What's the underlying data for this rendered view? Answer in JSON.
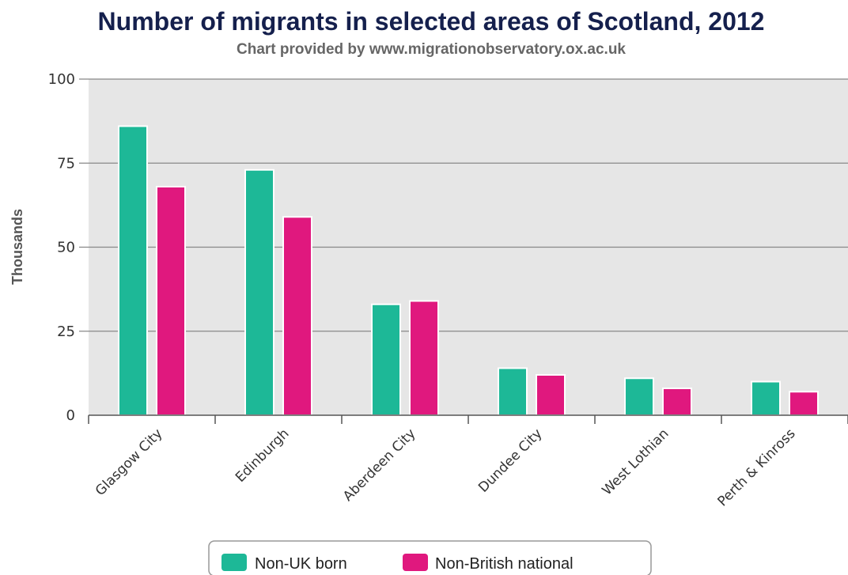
{
  "chart_data": {
    "type": "bar",
    "title": "Number of migrants in selected areas of Scotland, 2012",
    "subtitle": "Chart provided by www.migrationobservatory.ox.ac.uk",
    "ylabel": "Thousands",
    "xlabel": "",
    "ylim": [
      0,
      100
    ],
    "yticks": [
      0,
      25,
      50,
      75,
      100
    ],
    "grid": true,
    "legend": "bottom-center",
    "categories": [
      "Glasgow City",
      "Edinburgh",
      "Aberdeen City",
      "Dundee City",
      "West Lothian",
      "Perth & Kinross"
    ],
    "series": [
      {
        "name": "Non-UK born",
        "color": "#1db897",
        "values": [
          86,
          73,
          33,
          14,
          11,
          10
        ]
      },
      {
        "name": "Non-British national",
        "color": "#e0187e",
        "values": [
          68,
          59,
          34,
          12,
          8,
          7
        ]
      }
    ]
  }
}
